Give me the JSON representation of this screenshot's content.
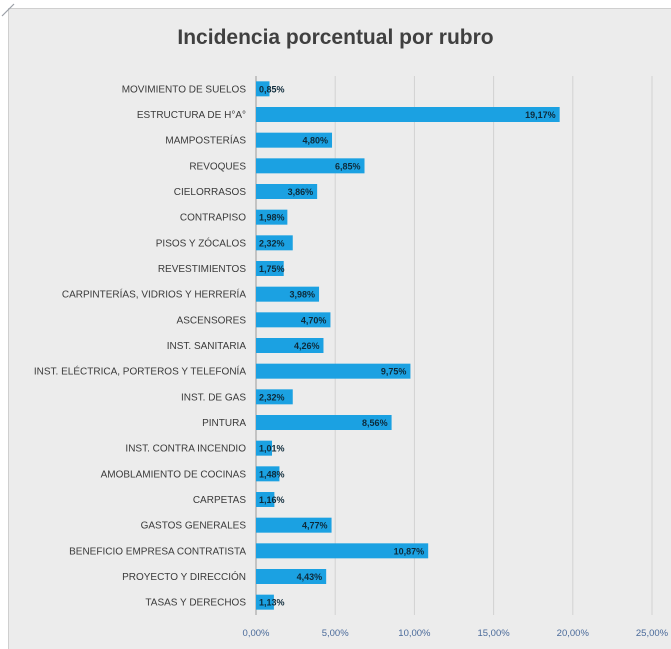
{
  "chart_data": {
    "type": "bar",
    "orientation": "horizontal",
    "title": "Incidencia porcentual por rubro",
    "categories": [
      "MOVIMIENTO DE SUELOS",
      "ESTRUCTURA DE H°A°",
      "MAMPOSTERÍAS",
      "REVOQUES",
      "CIELORRASOS",
      "CONTRAPISO",
      "PISOS Y ZÓCALOS",
      "REVESTIMIENTOS",
      "CARPINTERÍAS, VIDRIOS Y HERRERÍA",
      "ASCENSORES",
      "INST. SANITARIA",
      "INST. ELÉCTRICA, PORTEROS Y TELEFONÍA",
      "INST. DE GAS",
      "PINTURA",
      "INST. CONTRA INCENDIO",
      "AMOBLAMIENTO DE COCINAS",
      "CARPETAS",
      "GASTOS GENERALES",
      "BENEFICIO EMPRESA CONTRATISTA",
      "PROYECTO Y DIRECCIÓN",
      "TASAS Y DERECHOS"
    ],
    "values": [
      0.85,
      19.17,
      4.8,
      6.85,
      3.86,
      1.98,
      2.32,
      1.75,
      3.98,
      4.7,
      4.26,
      9.75,
      2.32,
      8.56,
      1.01,
      1.48,
      1.16,
      4.77,
      10.87,
      4.43,
      1.13
    ],
    "value_labels": [
      "0,85%",
      "19,17%",
      "4,80%",
      "6,85%",
      "3,86%",
      "1,98%",
      "2,32%",
      "1,75%",
      "3,98%",
      "4,70%",
      "4,26%",
      "9,75%",
      "2,32%",
      "8,56%",
      "1,01%",
      "1,48%",
      "1,16%",
      "4,77%",
      "10,87%",
      "4,43%",
      "1,13%"
    ],
    "xticks": [
      "0,00%",
      "5,00%",
      "10,00%",
      "15,00%",
      "20,00%",
      "25,00%"
    ],
    "xlim": [
      0,
      25
    ],
    "grid": true,
    "bar_color": "#1ba1e2",
    "value_label_color": "#0d2a3a",
    "background": "#ececec"
  }
}
